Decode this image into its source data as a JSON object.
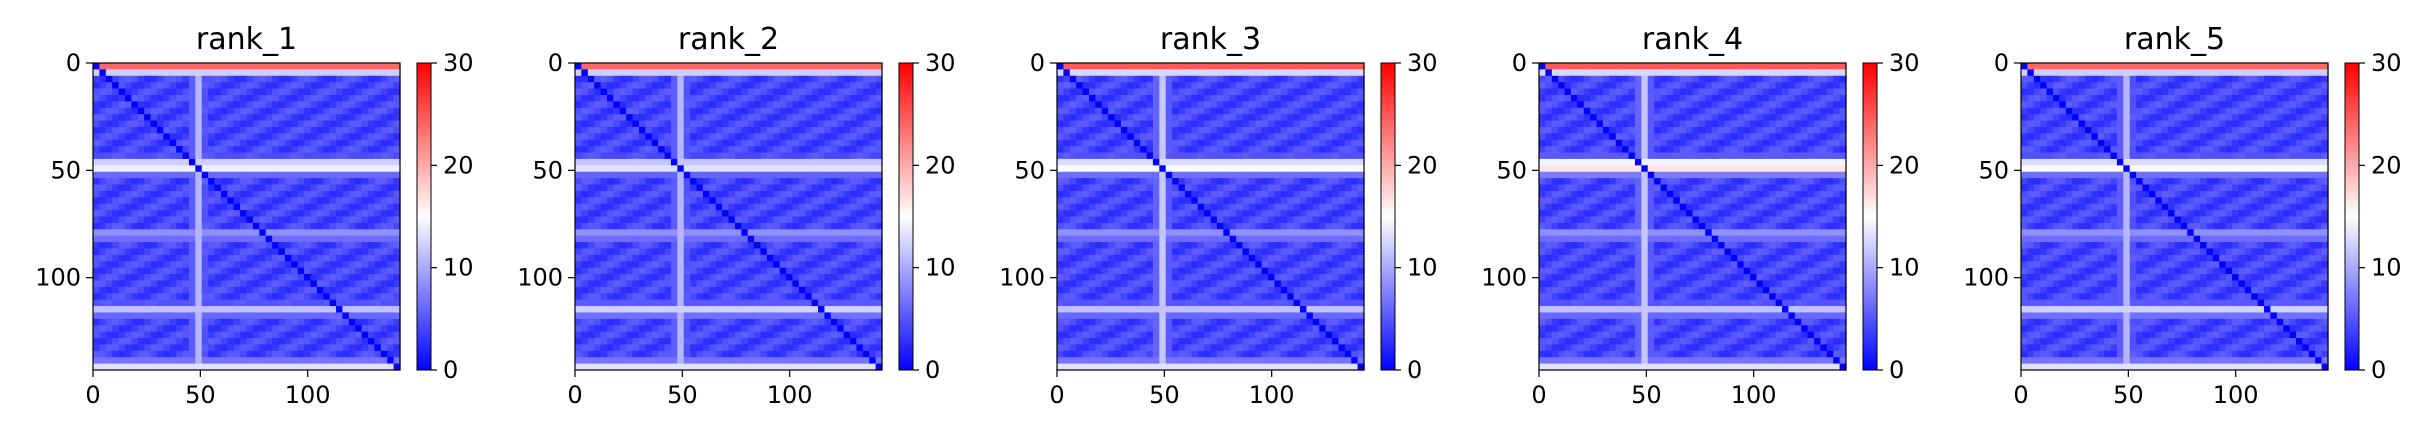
{
  "chart_data": [
    {
      "type": "heatmap",
      "title": "rank_1",
      "xlim": [
        0,
        143
      ],
      "ylim": [
        143,
        0
      ],
      "xticks": [
        "0",
        "50",
        "100"
      ],
      "yticks": [
        "0",
        "50",
        "100"
      ],
      "colorbar": {
        "ticks": [
          "0",
          "10",
          "20",
          "30"
        ],
        "range": [
          0,
          30
        ],
        "colormap": "bwr"
      },
      "grid": false,
      "profile": {
        "row_hot_bands": [
          {
            "start": 0,
            "end": 4,
            "value": 27
          },
          {
            "start": 44,
            "end": 52,
            "value": 17
          },
          {
            "start": 78,
            "end": 82,
            "value": 11
          },
          {
            "start": 112,
            "end": 118,
            "value": 12
          },
          {
            "start": 139,
            "end": 143,
            "value": 15
          }
        ],
        "col_hot_bands": [
          {
            "start": 46,
            "end": 52,
            "value": 11
          }
        ],
        "background": 4,
        "diagonal": 0
      }
    },
    {
      "type": "heatmap",
      "title": "rank_2",
      "xlim": [
        0,
        143
      ],
      "ylim": [
        143,
        0
      ],
      "xticks": [
        "0",
        "50",
        "100"
      ],
      "yticks": [
        "0",
        "50",
        "100"
      ],
      "colorbar": {
        "ticks": [
          "0",
          "10",
          "20",
          "30"
        ],
        "range": [
          0,
          30
        ],
        "colormap": "bwr"
      },
      "grid": false,
      "profile": {
        "row_hot_bands": [
          {
            "start": 0,
            "end": 4,
            "value": 27
          },
          {
            "start": 44,
            "end": 52,
            "value": 16
          },
          {
            "start": 78,
            "end": 82,
            "value": 11
          },
          {
            "start": 112,
            "end": 118,
            "value": 13
          },
          {
            "start": 139,
            "end": 143,
            "value": 15
          }
        ],
        "col_hot_bands": [
          {
            "start": 46,
            "end": 52,
            "value": 11
          }
        ],
        "background": 4,
        "diagonal": 0
      }
    },
    {
      "type": "heatmap",
      "title": "rank_3",
      "xlim": [
        0,
        143
      ],
      "ylim": [
        143,
        0
      ],
      "xticks": [
        "0",
        "50",
        "100"
      ],
      "yticks": [
        "0",
        "50",
        "100"
      ],
      "colorbar": {
        "ticks": [
          "0",
          "10",
          "20",
          "30"
        ],
        "range": [
          0,
          30
        ],
        "colormap": "bwr"
      },
      "grid": false,
      "profile": {
        "row_hot_bands": [
          {
            "start": 0,
            "end": 4,
            "value": 28
          },
          {
            "start": 44,
            "end": 52,
            "value": 18
          },
          {
            "start": 78,
            "end": 82,
            "value": 11
          },
          {
            "start": 112,
            "end": 118,
            "value": 12
          },
          {
            "start": 139,
            "end": 143,
            "value": 15
          }
        ],
        "col_hot_bands": [
          {
            "start": 46,
            "end": 52,
            "value": 12
          }
        ],
        "background": 4,
        "diagonal": 0
      }
    },
    {
      "type": "heatmap",
      "title": "rank_4",
      "xlim": [
        0,
        143
      ],
      "ylim": [
        143,
        0
      ],
      "xticks": [
        "0",
        "50",
        "100"
      ],
      "yticks": [
        "0",
        "50",
        "100"
      ],
      "colorbar": {
        "ticks": [
          "0",
          "10",
          "20",
          "30"
        ],
        "range": [
          0,
          30
        ],
        "colormap": "bwr"
      },
      "grid": false,
      "profile": {
        "row_hot_bands": [
          {
            "start": 0,
            "end": 4,
            "value": 28
          },
          {
            "start": 44,
            "end": 52,
            "value": 20
          },
          {
            "start": 78,
            "end": 82,
            "value": 11
          },
          {
            "start": 112,
            "end": 118,
            "value": 12
          },
          {
            "start": 139,
            "end": 143,
            "value": 15
          }
        ],
        "col_hot_bands": [
          {
            "start": 46,
            "end": 52,
            "value": 12
          }
        ],
        "background": 4,
        "diagonal": 0
      }
    },
    {
      "type": "heatmap",
      "title": "rank_5",
      "xlim": [
        0,
        143
      ],
      "ylim": [
        143,
        0
      ],
      "xticks": [
        "0",
        "50",
        "100"
      ],
      "yticks": [
        "0",
        "50",
        "100"
      ],
      "colorbar": {
        "ticks": [
          "0",
          "10",
          "20",
          "30"
        ],
        "range": [
          0,
          30
        ],
        "colormap": "bwr"
      },
      "grid": false,
      "profile": {
        "row_hot_bands": [
          {
            "start": 0,
            "end": 4,
            "value": 27
          },
          {
            "start": 44,
            "end": 52,
            "value": 18
          },
          {
            "start": 78,
            "end": 82,
            "value": 11
          },
          {
            "start": 112,
            "end": 118,
            "value": 13
          },
          {
            "start": 139,
            "end": 143,
            "value": 15
          }
        ],
        "col_hot_bands": [
          {
            "start": 46,
            "end": 52,
            "value": 11
          }
        ],
        "background": 4,
        "diagonal": 0
      }
    }
  ],
  "colors": {
    "low": "#0000ff",
    "mid": "#ffffff",
    "high": "#ff0000"
  }
}
